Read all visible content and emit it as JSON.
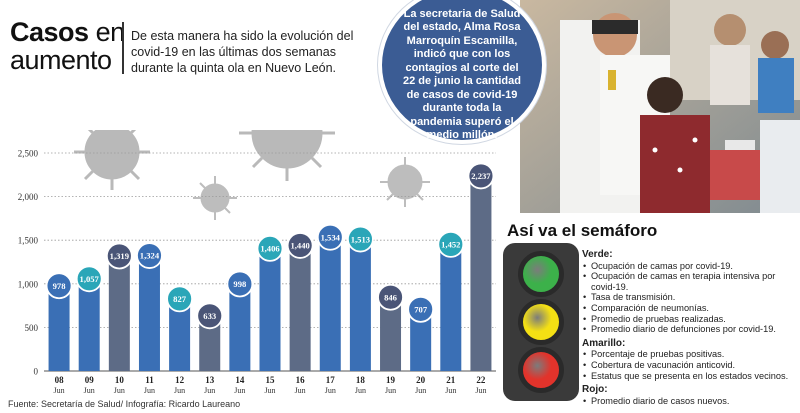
{
  "header": {
    "title_bold": "Casos",
    "title_light_1": "en",
    "title_light_2": "aumento",
    "intro": "De esta manera ha sido la evolución del covid-19 en las últimas dos semanas durante la quinta ola en Nuevo León."
  },
  "callout": {
    "text": "La secretaria de Salud del estado, Alma Rosa Marroquín Escamilla, indicó que con los contagios al corte del 22 de junio la cantidad de casos de covid-19 durante toda la pandemia superó el medio millón."
  },
  "chart_data": {
    "type": "bar",
    "categories": [
      [
        "08",
        "Jun"
      ],
      [
        "09",
        "Jun"
      ],
      [
        "10",
        "Jun"
      ],
      [
        "11",
        "Jun"
      ],
      [
        "12",
        "Jun"
      ],
      [
        "13",
        "Jun"
      ],
      [
        "14",
        "Jun"
      ],
      [
        "15",
        "Jun"
      ],
      [
        "16",
        "Jun"
      ],
      [
        "17",
        "Jun"
      ],
      [
        "18",
        "Jun"
      ],
      [
        "19",
        "Jun"
      ],
      [
        "20",
        "Jun"
      ],
      [
        "21",
        "Jun"
      ],
      [
        "22",
        "Jun"
      ]
    ],
    "values": [
      978,
      1057,
      1319,
      1324,
      827,
      633,
      998,
      1406,
      1440,
      1534,
      1513,
      846,
      707,
      1452,
      2237
    ],
    "value_labels": [
      "978",
      "1,057",
      "1,319",
      "1,324",
      "827",
      "633",
      "998",
      "1,406",
      "1,440",
      "1,534",
      "1,513",
      "846",
      "707",
      "1,452",
      "2,237"
    ],
    "bar_colors": [
      "#3a6fb5",
      "#3a6fb5",
      "#5d6b86",
      "#3a6fb5",
      "#3a6fb5",
      "#5d6b86",
      "#3a6fb5",
      "#3a6fb5",
      "#5d6b86",
      "#3a6fb5",
      "#3a6fb5",
      "#5d6b86",
      "#3a6fb5",
      "#3a6fb5",
      "#5d6b86"
    ],
    "label_colors": [
      "#3a6fb5",
      "#2aa6b8",
      "#4a5577",
      "#3a6fb5",
      "#2aa6b8",
      "#4a5577",
      "#3a6fb5",
      "#2aa6b8",
      "#4a5577",
      "#3a6fb5",
      "#2aa6b8",
      "#4a5577",
      "#3a6fb5",
      "#2aa6b8",
      "#4a5577"
    ],
    "yticks": [
      "0",
      "500",
      "1,000",
      "1,500",
      "2,000",
      "2,500"
    ],
    "ytick_values": [
      0,
      500,
      1000,
      1500,
      2000,
      2500
    ],
    "ylim": [
      0,
      2500
    ],
    "grid": true
  },
  "source": "Fuente: Secretaría de Salud/ Infografía: Ricardo Laureano",
  "semaforo": {
    "title": "Así va el semáforo",
    "lamp_colors": [
      "#3cb14a",
      "#f4e014",
      "#e2332b"
    ],
    "groups": [
      {
        "heading": "Verde:",
        "items": [
          "Ocupación de camas por covid-19.",
          "Ocupación de camas en terapia intensiva por covid-19.",
          "Tasa de transmisión.",
          "Comparación de neumonías.",
          "Promedio de pruebas realizadas.",
          "Promedio diario de defunciones por covid-19."
        ]
      },
      {
        "heading": "Amarillo:",
        "items": [
          "Porcentaje de pruebas positivas.",
          "Cobertura de vacunación anticovid.",
          "Estatus que se presenta en los estados vecinos."
        ]
      },
      {
        "heading": "Rojo:",
        "items": [
          "Promedio diario de casos nuevos."
        ]
      }
    ]
  }
}
